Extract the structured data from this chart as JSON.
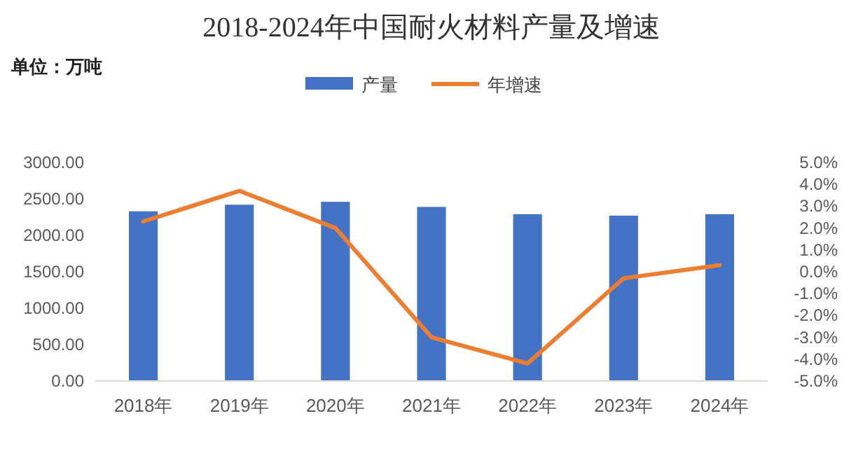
{
  "chart_data": {
    "type": "bar",
    "title": "2018-2024年中国耐火材料产量及增速",
    "annotations": [
      "单位：万吨"
    ],
    "categories": [
      "2018年",
      "2019年",
      "2020年",
      "2021年",
      "2022年",
      "2023年",
      "2024年"
    ],
    "series": [
      {
        "name": "产量",
        "color": "#4472c4",
        "values": [
          2330,
          2420,
          2460,
          2390,
          2290,
          2270,
          2290
        ]
      },
      {
        "name": "年增速",
        "type": "line",
        "axis": "y2",
        "color": "#ed7d31",
        "values": [
          2.3,
          3.7,
          2.0,
          -3.0,
          -4.2,
          -0.3,
          0.3
        ]
      }
    ],
    "ylim": [
      0,
      3000
    ],
    "yticks": [
      {
        "value": 0,
        "label": "0.00"
      },
      {
        "value": 500,
        "label": "500.00"
      },
      {
        "value": 1000,
        "label": "1000.00"
      },
      {
        "value": 1500,
        "label": "1500.00"
      },
      {
        "value": 2000,
        "label": "2000.00"
      },
      {
        "value": 2500,
        "label": "2500.00"
      },
      {
        "value": 3000,
        "label": "3000.00"
      }
    ],
    "y2lim": [
      -5,
      5
    ],
    "y2ticks": [
      {
        "value": -5,
        "label": "-5.0%"
      },
      {
        "value": -4,
        "label": "-4.0%"
      },
      {
        "value": -3,
        "label": "-3.0%"
      },
      {
        "value": -2,
        "label": "-2.0%"
      },
      {
        "value": -1,
        "label": "-1.0%"
      },
      {
        "value": 0,
        "label": "0.0%"
      },
      {
        "value": 1,
        "label": "1.0%"
      },
      {
        "value": 2,
        "label": "2.0%"
      },
      {
        "value": 3,
        "label": "3.0%"
      },
      {
        "value": 4,
        "label": "4.0%"
      },
      {
        "value": 5,
        "label": "5.0%"
      }
    ],
    "legend": "top",
    "grid": false,
    "marker": "none",
    "line_style": "solid"
  }
}
